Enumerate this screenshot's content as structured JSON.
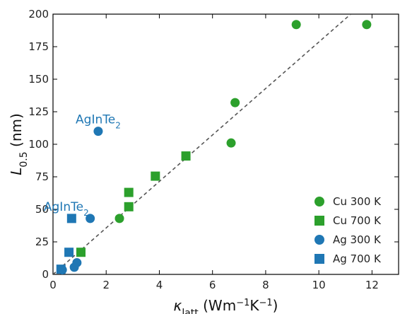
{
  "chart_data": {
    "type": "scatter",
    "xlabel": {
      "base": "κ",
      "sub": "latt",
      "units_pre": " (Wm",
      "sup1": "−1",
      "units_mid": "K",
      "sup2": "−1",
      "units_post": ")"
    },
    "ylabel": {
      "base": "L",
      "sub": "0.5",
      "units": " (nm)"
    },
    "xlim": [
      0,
      13
    ],
    "ylim": [
      0,
      200
    ],
    "xticks": [
      0,
      2,
      4,
      6,
      8,
      10,
      12
    ],
    "yticks": [
      0,
      25,
      50,
      75,
      100,
      125,
      150,
      175,
      200
    ],
    "grid": false,
    "legend_position": "bottom-right",
    "colors": {
      "cu": "#2ca02c",
      "ag": "#1f77b4",
      "fit": "#555555"
    },
    "series": [
      {
        "name": "Cu 300 K",
        "marker": "circle",
        "color": "#2ca02c",
        "x": [
          9.15,
          11.8,
          6.85,
          6.7,
          2.5
        ],
        "y": [
          192,
          192,
          132,
          101,
          43
        ]
      },
      {
        "name": "Cu 700 K",
        "marker": "square",
        "color": "#2ca02c",
        "x": [
          5.0,
          3.85,
          2.85,
          2.85,
          1.05
        ],
        "y": [
          91,
          75.5,
          63,
          52,
          17
        ]
      },
      {
        "name": "Ag 300 K",
        "marker": "circle",
        "color": "#1f77b4",
        "x": [
          1.7,
          1.4,
          0.9,
          0.8,
          0.35
        ],
        "y": [
          110,
          43,
          9,
          5.5,
          3.5
        ]
      },
      {
        "name": "Ag 700 K",
        "marker": "square",
        "color": "#1f77b4",
        "x": [
          0.7,
          0.6,
          0.3
        ],
        "y": [
          43,
          17,
          4
        ]
      }
    ],
    "fit_line": {
      "style": "dashed",
      "x": [
        0,
        11.2
      ],
      "y": [
        0,
        200
      ]
    },
    "annotations": [
      {
        "base": "AgInTe",
        "sub": "2",
        "x": 1.7,
        "y": 116,
        "color": "#1f77b4"
      },
      {
        "base": "AgInTe",
        "sub": "2",
        "x": 0.5,
        "y": 49,
        "color": "#1f77b4"
      }
    ]
  }
}
